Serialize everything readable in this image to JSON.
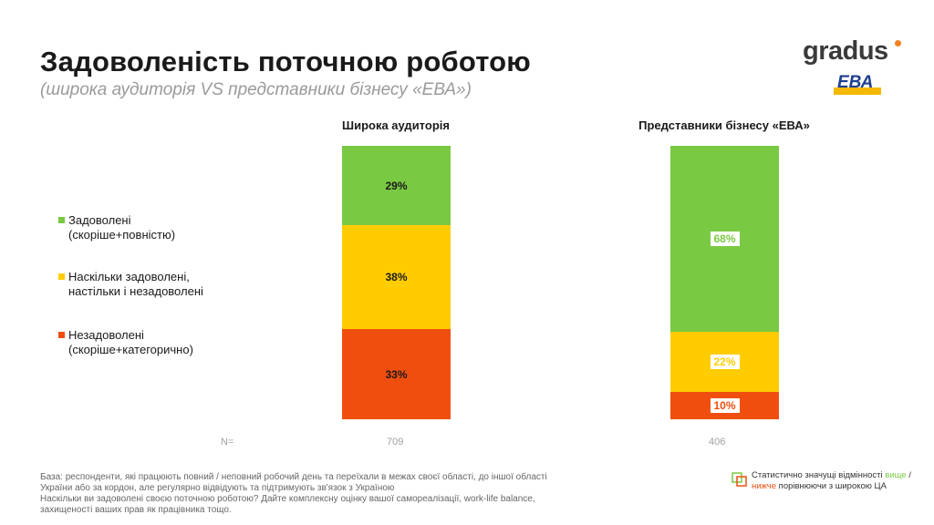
{
  "header": {
    "title": "Задоволеність поточною роботою",
    "subtitle": "(широка аудиторія VS представники бізнесу «ЕВА»)"
  },
  "logo": {
    "word": "gradus",
    "badge": "ЕВА"
  },
  "colors": {
    "green": "#7ac943",
    "yellow": "#ffcc00",
    "red": "#f04e0f"
  },
  "legend": [
    {
      "label_line1": "Задоволені",
      "label_line2": "(скоріше+повністю)",
      "color": "#7ac943"
    },
    {
      "label_line1": "Наскільки задоволені,",
      "label_line2": "настільки і незадоволені",
      "color": "#ffcc00"
    },
    {
      "label_line1": "Незадоволені",
      "label_line2": "(скоріше+категорично)",
      "color": "#f04e0f"
    }
  ],
  "chart_data": {
    "type": "bar",
    "stacked": true,
    "categories": [
      "Широка аудиторія",
      "Представники бізнесу «ЕВА»"
    ],
    "series": [
      {
        "name": "Задоволені (скоріше+повністю)",
        "values": [
          29,
          68
        ],
        "labels": [
          "29%",
          "68%"
        ]
      },
      {
        "name": "Наскільки задоволені, настільки і незадоволені",
        "values": [
          38,
          22
        ],
        "labels": [
          "38%",
          "22%"
        ]
      },
      {
        "name": "Незадоволені (скоріше+категорично)",
        "values": [
          33,
          10
        ],
        "labels": [
          "33%",
          "10%"
        ]
      }
    ],
    "boxed_labels": [
      false,
      true
    ],
    "n_label": "N=",
    "n_values": [
      "709",
      "406"
    ]
  },
  "footer": {
    "base_line1": "База: респонденти, які працюють повний / неповний робочий день та переїхали в межах своєї області, до іншої області",
    "base_line2": "України або за кордон, але регулярно відвідують та підтримують зв'язок з Україною",
    "base_line3": "Наскільки ви задоволені своєю поточною роботою? Дайте комплексну оцінку вашої самореалізації, work-life balance,",
    "base_line4": "захищеності ваших прав як працівника тощо.",
    "sig_part1": "Статистично значущі відмінності ",
    "sig_higher": "вище",
    "sig_sep": " /",
    "sig_lower": "нижче",
    "sig_part2": " порівнюючи з широкою ЦА"
  }
}
